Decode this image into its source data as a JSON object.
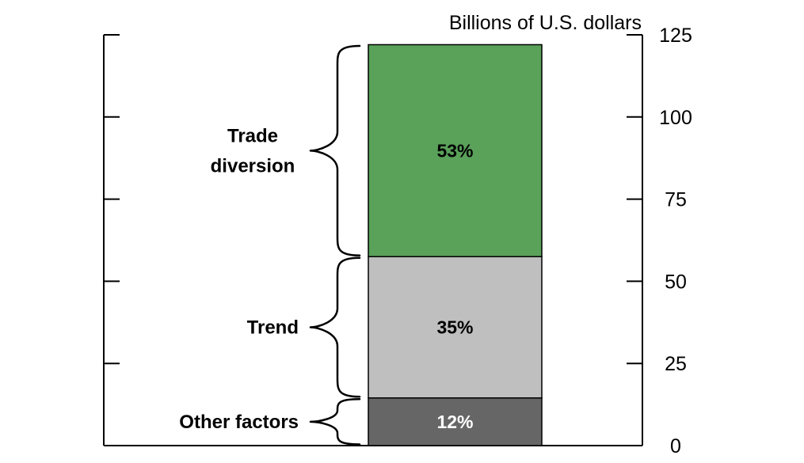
{
  "chart_data": {
    "type": "bar",
    "stacked": true,
    "unit_label": "Billions of U.S. dollars",
    "ylim": [
      0,
      125
    ],
    "yticks": [
      0,
      25,
      50,
      75,
      100,
      125
    ],
    "grid": false,
    "segments": [
      {
        "name": "Other factors",
        "value": 14.5,
        "share_label": "12%",
        "color": "#666666",
        "label_color": "#ffffff"
      },
      {
        "name": "Trend",
        "value": 43,
        "share_label": "35%",
        "color": "#bfbfbf",
        "label_color": "#000000"
      },
      {
        "name": "Trade diversion",
        "value": 64.5,
        "share_label": "53%",
        "color": "#5aa15a",
        "label_color": "#000000"
      }
    ]
  }
}
